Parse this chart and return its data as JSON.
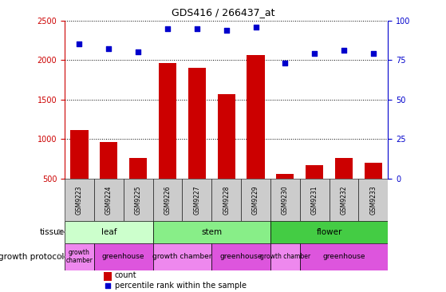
{
  "title": "GDS416 / 266437_at",
  "samples": [
    "GSM9223",
    "GSM9224",
    "GSM9225",
    "GSM9226",
    "GSM9227",
    "GSM9228",
    "GSM9229",
    "GSM9230",
    "GSM9231",
    "GSM9232",
    "GSM9233"
  ],
  "counts": [
    1120,
    960,
    760,
    1960,
    1900,
    1570,
    2060,
    560,
    670,
    760,
    700
  ],
  "percentiles": [
    85,
    82,
    80,
    95,
    95,
    94,
    96,
    73,
    79,
    81,
    79
  ],
  "tissue_groups": [
    {
      "label": "leaf",
      "start": 0,
      "end": 3,
      "color": "#ccffcc"
    },
    {
      "label": "stem",
      "start": 3,
      "end": 7,
      "color": "#88ee88"
    },
    {
      "label": "flower",
      "start": 7,
      "end": 11,
      "color": "#44cc44"
    }
  ],
  "growth_protocol_groups": [
    {
      "label": "growth\nchamber",
      "start": 0,
      "end": 1,
      "color": "#ee88ee"
    },
    {
      "label": "greenhouse",
      "start": 1,
      "end": 3,
      "color": "#dd55dd"
    },
    {
      "label": "growth chamber",
      "start": 3,
      "end": 5,
      "color": "#ee88ee"
    },
    {
      "label": "greenhouse",
      "start": 5,
      "end": 7,
      "color": "#dd55dd"
    },
    {
      "label": "growth chamber",
      "start": 7,
      "end": 8,
      "color": "#ee88ee"
    },
    {
      "label": "greenhouse",
      "start": 8,
      "end": 11,
      "color": "#dd55dd"
    }
  ],
  "bar_color": "#cc0000",
  "dot_color": "#0000cc",
  "ylim_left": [
    500,
    2500
  ],
  "ylim_right": [
    0,
    100
  ],
  "yticks_left": [
    500,
    1000,
    1500,
    2000,
    2500
  ],
  "yticks_right": [
    0,
    25,
    50,
    75,
    100
  ],
  "axis_color_left": "#cc0000",
  "axis_color_right": "#0000cc",
  "sample_bg_color": "#cccccc",
  "tissue_label": "tissue",
  "growth_label": "growth protocol",
  "legend_count": "count",
  "legend_percentile": "percentile rank within the sample"
}
